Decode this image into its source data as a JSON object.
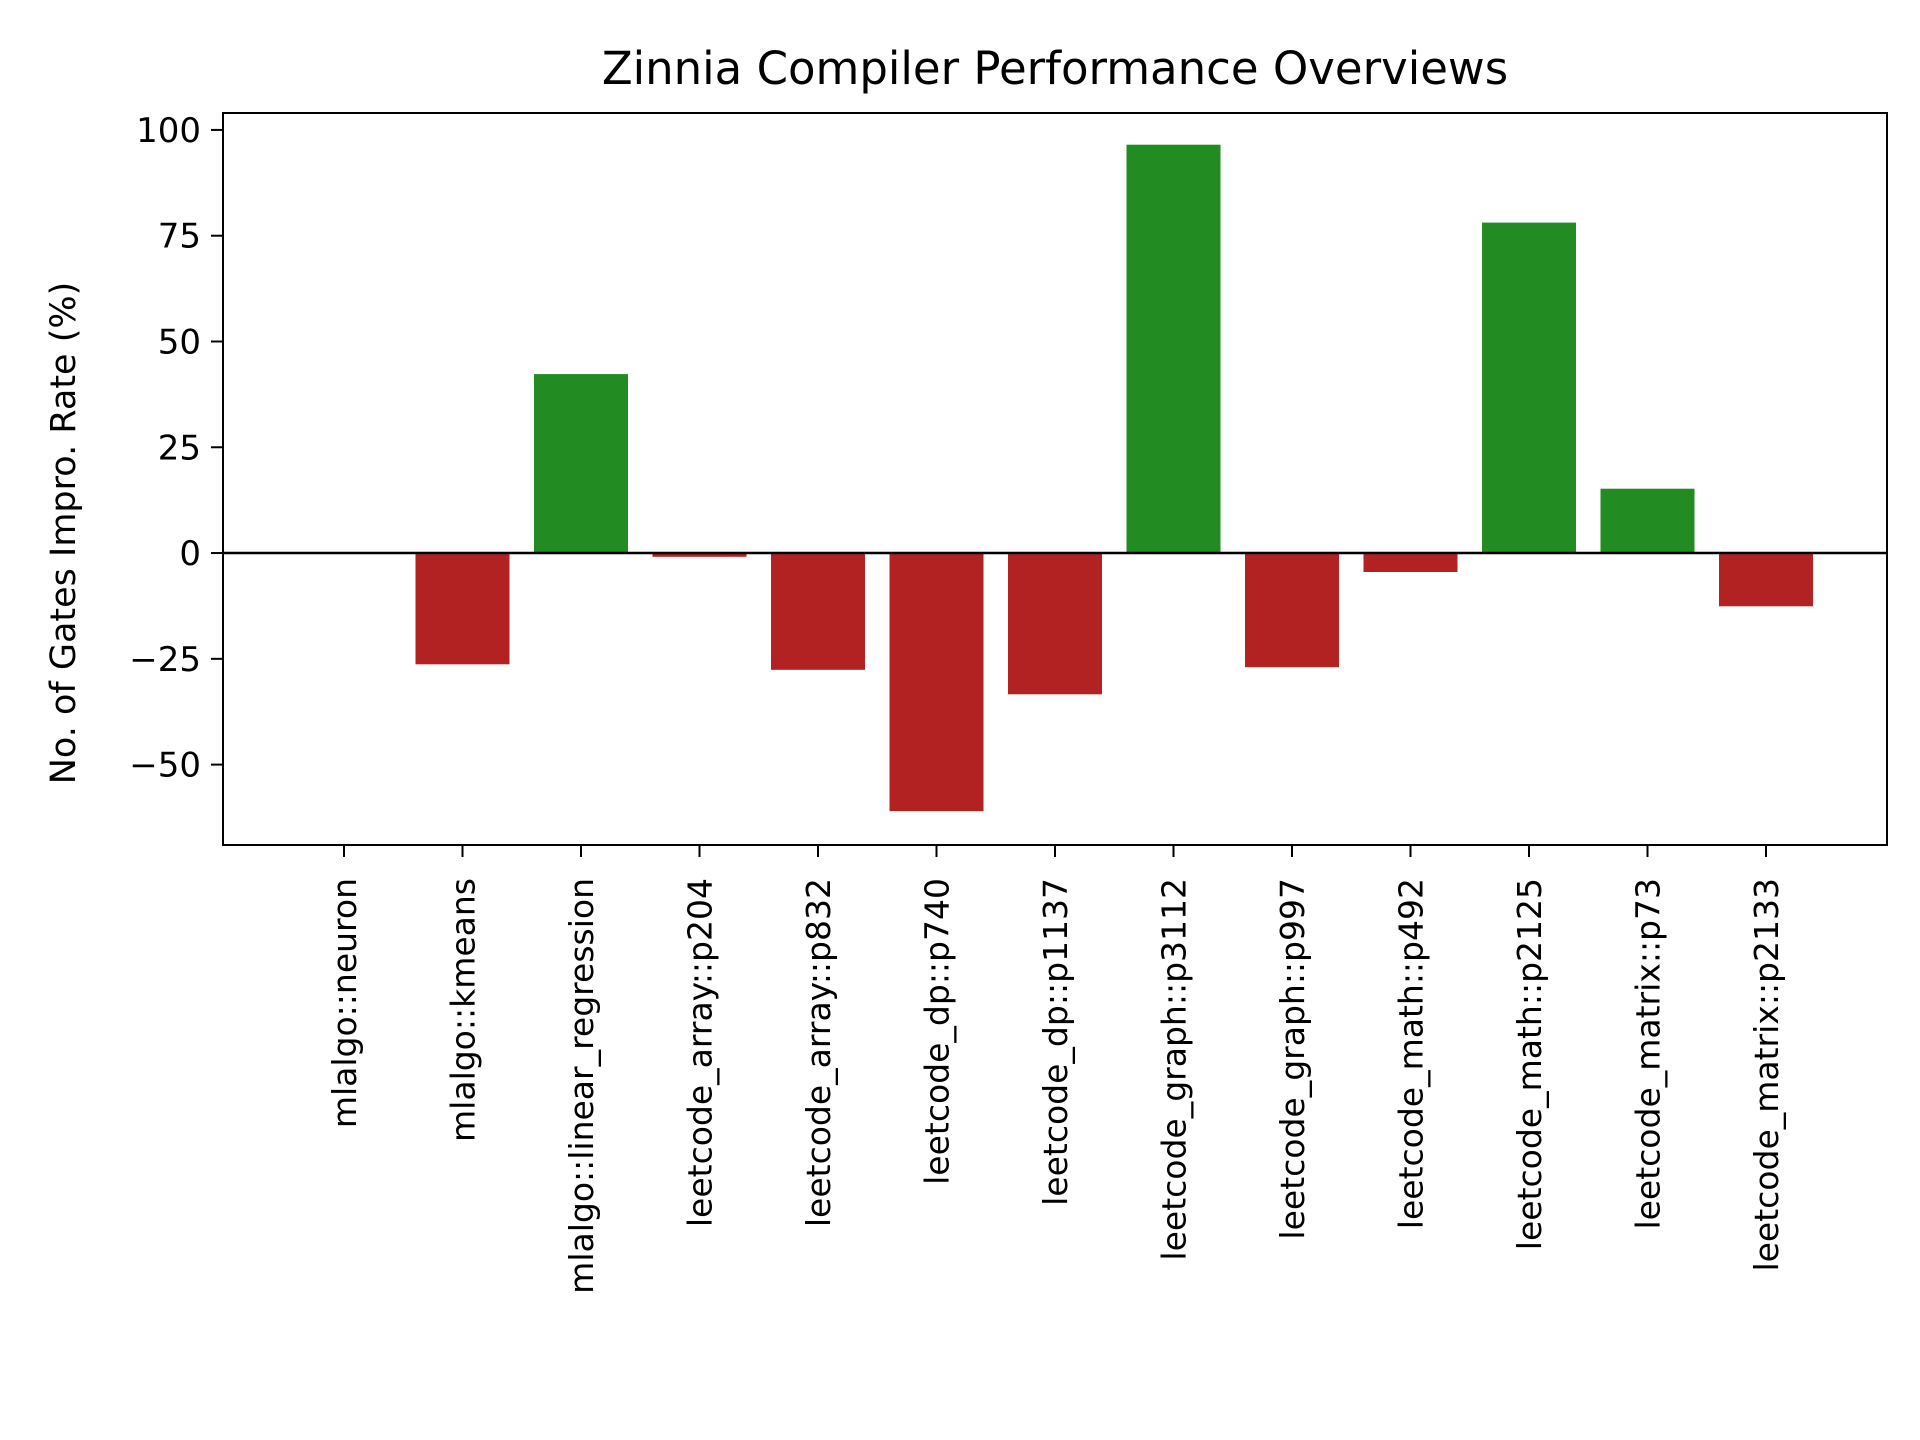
{
  "chart_data": {
    "type": "bar",
    "title": "Zinnia Compiler Performance Overviews",
    "xlabel": "",
    "ylabel": "No. of Gates Impro. Rate (%)",
    "categories": [
      "mlalgo::neuron",
      "mlalgo::kmeans",
      "mlalgo::linear_regression",
      "leetcode_array::p204",
      "leetcode_array::p832",
      "leetcode_dp::p740",
      "leetcode_dp::p1137",
      "leetcode_graph::p3112",
      "leetcode_graph::p997",
      "leetcode_math::p492",
      "leetcode_math::p2125",
      "leetcode_matrix::p73",
      "leetcode_matrix::p2133"
    ],
    "values": [
      0,
      -26.3,
      42.3,
      -0.9,
      -27.6,
      -61.0,
      -33.4,
      96.5,
      -27.0,
      -4.5,
      78.1,
      15.2,
      -12.6
    ],
    "ylim": [
      -69,
      104
    ],
    "yticks": [
      -50,
      -25,
      0,
      25,
      50,
      75,
      100
    ],
    "ytick_labels": [
      "−50",
      "−25",
      "0",
      "25",
      "50",
      "75",
      "100"
    ],
    "grid": false,
    "zero_line": true,
    "colors": {
      "positive": "#228b22",
      "negative": "#b22222",
      "axis": "#000000"
    }
  }
}
